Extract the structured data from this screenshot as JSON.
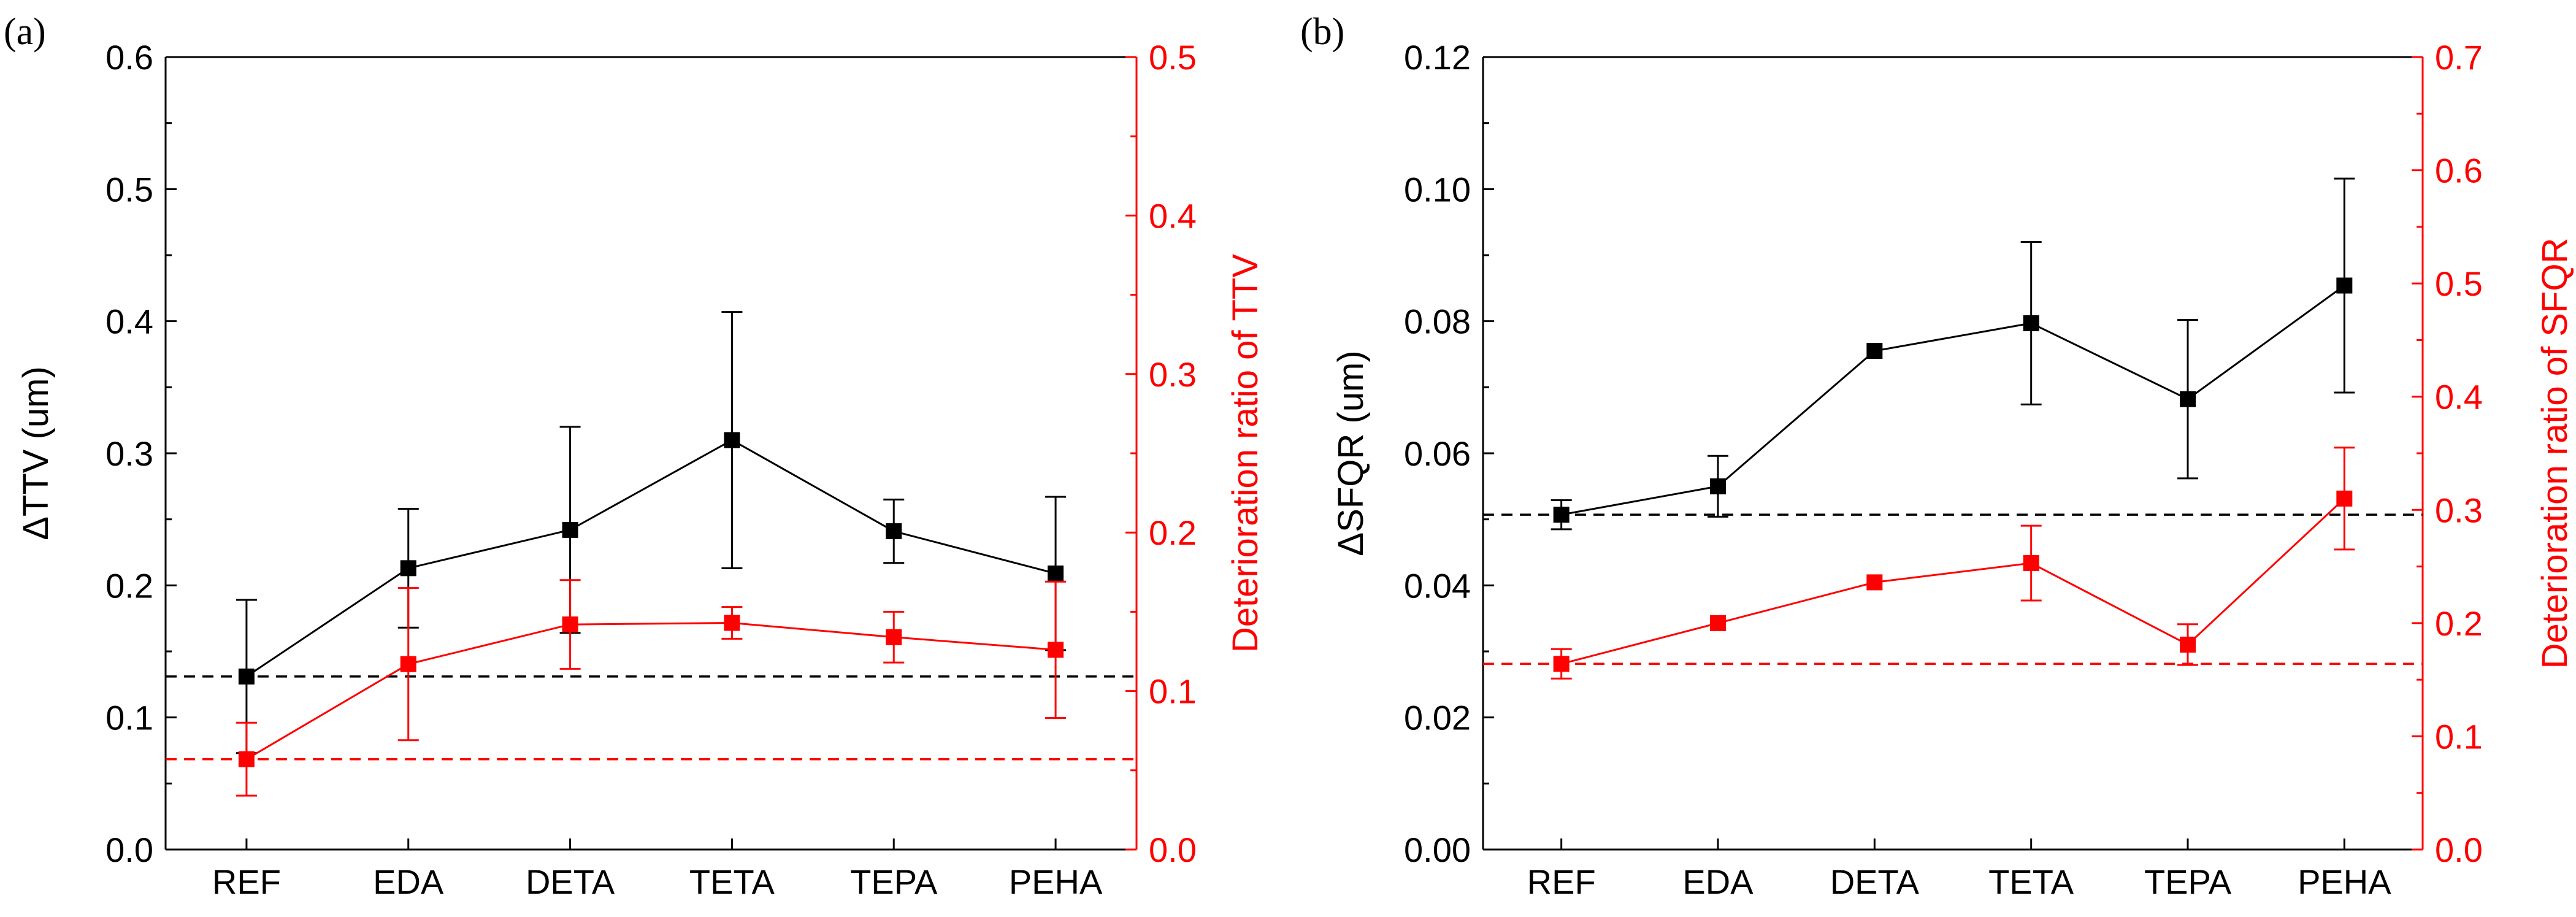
{
  "chart_data": [
    {
      "type": "line",
      "panel_label": "(a)",
      "categories": [
        "REF",
        "EDA",
        "DETA",
        "TETA",
        "TEPA",
        "PEHA"
      ],
      "left_axis": {
        "label": "ΔTTV (um)",
        "range": [
          0.0,
          0.6
        ],
        "ticks": [
          "0.0",
          "0.1",
          "0.2",
          "0.3",
          "0.4",
          "0.5",
          "0.6"
        ],
        "color": "#000000"
      },
      "right_axis": {
        "label": "Deterioration ratio of TTV",
        "range": [
          0.0,
          0.5
        ],
        "ticks": [
          "0.0",
          "0.1",
          "0.2",
          "0.3",
          "0.4",
          "0.5"
        ],
        "color": "#ff0000"
      },
      "series": [
        {
          "name": "ΔTTV",
          "axis": "left",
          "color": "#000000",
          "values": [
            0.131,
            0.213,
            0.242,
            0.31,
            0.241,
            0.209
          ],
          "error": [
            0.058,
            0.045,
            0.078,
            0.097,
            0.024,
            0.058
          ],
          "reference": 0.131
        },
        {
          "name": "Deterioration ratio of TTV",
          "axis": "right",
          "color": "#ff0000",
          "values": [
            0.057,
            0.117,
            0.142,
            0.143,
            0.134,
            0.126
          ],
          "error": [
            0.023,
            0.048,
            0.028,
            0.01,
            0.016,
            0.043
          ],
          "reference": 0.057
        }
      ]
    },
    {
      "type": "line",
      "panel_label": "(b)",
      "categories": [
        "REF",
        "EDA",
        "DETA",
        "TETA",
        "TEPA",
        "PEHA"
      ],
      "left_axis": {
        "label": "ΔSFQR (um)",
        "range": [
          0.0,
          0.12
        ],
        "ticks": [
          "0.00",
          "0.02",
          "0.04",
          "0.06",
          "0.08",
          "0.10",
          "0.12"
        ],
        "color": "#000000"
      },
      "right_axis": {
        "label": "Deterioration ratio of SFQR",
        "range": [
          0.0,
          0.7
        ],
        "ticks": [
          "0.0",
          "0.1",
          "0.2",
          "0.3",
          "0.4",
          "0.5",
          "0.6",
          "0.7"
        ],
        "color": "#ff0000"
      },
      "series": [
        {
          "name": "ΔSFQR",
          "axis": "left",
          "color": "#000000",
          "values": [
            0.0507,
            0.055,
            0.0755,
            0.0797,
            0.0682,
            0.0854
          ],
          "error": [
            0.0022,
            0.0046,
            0.0,
            0.0123,
            0.012,
            0.0162
          ],
          "reference": 0.0507
        },
        {
          "name": "Deterioration ratio of SFQR",
          "axis": "right",
          "color": "#ff0000",
          "values": [
            0.164,
            0.2,
            0.236,
            0.253,
            0.181,
            0.31
          ],
          "error": [
            0.013,
            0.0,
            0.0,
            0.033,
            0.018,
            0.045
          ],
          "reference": 0.164
        }
      ]
    }
  ]
}
